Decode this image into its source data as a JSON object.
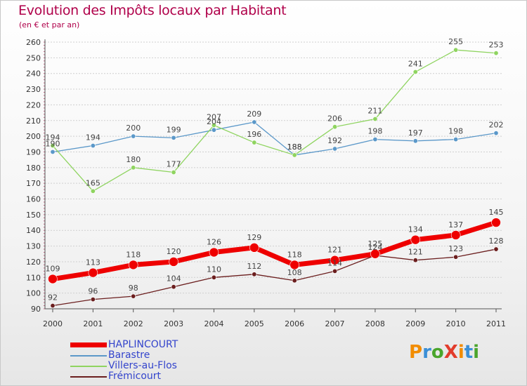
{
  "title": "Evolution des Impôts locaux par Habitant",
  "subtitle": "(en € et par an)",
  "logo": {
    "text": "ProXiti",
    "colors": [
      "#f28c00",
      "#3b8fd6",
      "#4aa52c",
      "#e23c2c",
      "#f28c00",
      "#3b8fd6",
      "#4aa52c"
    ]
  },
  "chart_data": {
    "type": "line",
    "x": [
      "2000",
      "2001",
      "2002",
      "2003",
      "2004",
      "2005",
      "2006",
      "2007",
      "2008",
      "2009",
      "2010",
      "2011"
    ],
    "ylim": [
      90,
      260
    ],
    "yticks": [
      90,
      100,
      110,
      120,
      130,
      140,
      150,
      160,
      170,
      180,
      190,
      200,
      210,
      220,
      230,
      240,
      250,
      260
    ],
    "grid": "horizontal dashed",
    "legend_position": "bottom-left",
    "series": [
      {
        "name": "Barastre",
        "color": "#5b98c9",
        "width": 1.3,
        "marker": 3.2,
        "values": [
          190,
          194,
          200,
          199,
          204,
          209,
          188,
          192,
          198,
          197,
          198,
          202
        ],
        "labels": [
          "190",
          "194",
          "200",
          "199",
          "204",
          "209",
          "188",
          "192",
          "198",
          "197",
          "198",
          "202"
        ]
      },
      {
        "name": "Villers-au-Flos",
        "color": "#8fd460",
        "width": 1.3,
        "marker": 3.2,
        "values": [
          194,
          165,
          180,
          177,
          207,
          196,
          188,
          206,
          211,
          241,
          255,
          253
        ],
        "labels": [
          "194",
          "165",
          "180",
          "177",
          "207",
          "196",
          "188",
          "206",
          "211",
          "241",
          "255",
          "253"
        ]
      },
      {
        "name": "Frémicourt",
        "color": "#6b1e1e",
        "width": 1.3,
        "marker": 3.2,
        "values": [
          92,
          96,
          98,
          104,
          110,
          112,
          108,
          114,
          124,
          121,
          123,
          128
        ],
        "labels": [
          "92",
          "96",
          "98",
          "104",
          "110",
          "112",
          "108",
          "114",
          "124",
          "121",
          "123",
          "128"
        ]
      },
      {
        "name": "HAPLINCOURT",
        "color": "#ee0000",
        "width": 7,
        "marker": 6.5,
        "values": [
          109,
          113,
          118,
          120,
          126,
          129,
          118,
          121,
          125,
          134,
          137,
          145
        ],
        "labels": [
          "109",
          "113",
          "118",
          "120",
          "126",
          "129",
          "118",
          "121",
          "125",
          "134",
          "137",
          "145"
        ]
      }
    ],
    "legend_order": [
      "HAPLINCOURT",
      "Barastre",
      "Villers-au-Flos",
      "Frémicourt"
    ]
  }
}
